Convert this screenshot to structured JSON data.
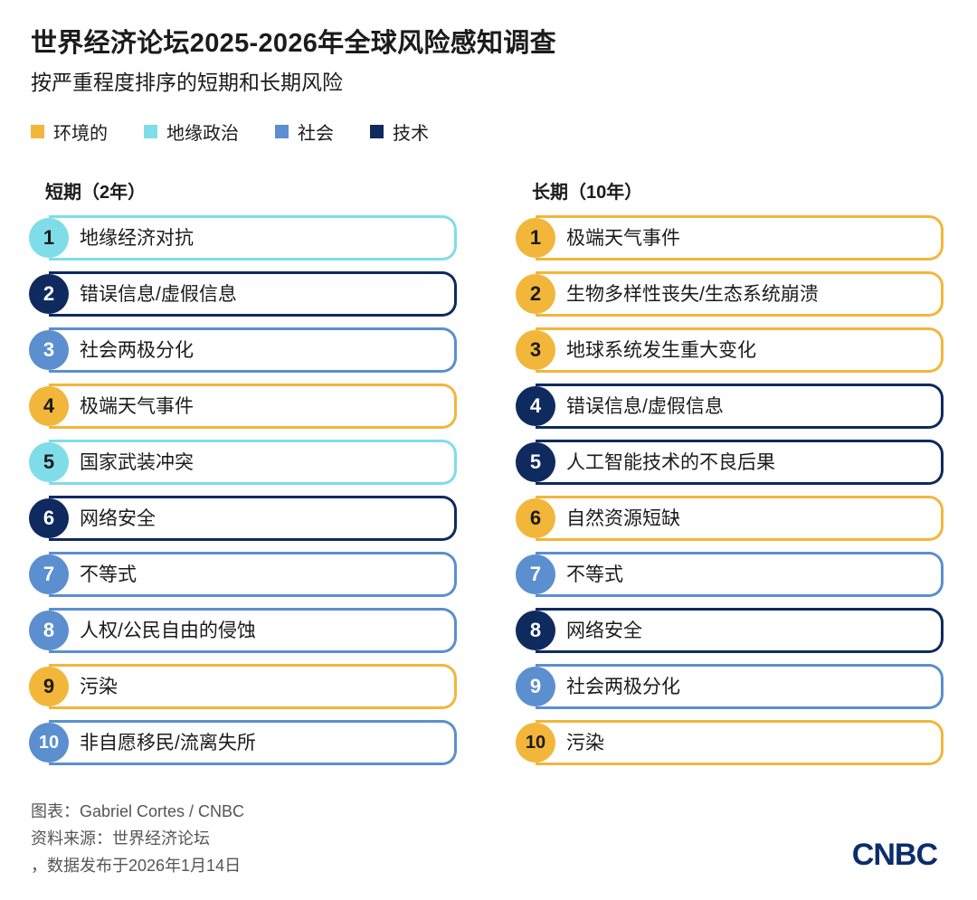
{
  "title": "世界经济论坛2025-2026年全球风险感知调查",
  "subtitle": "按严重程度排序的短期和长期风险",
  "legend": [
    {
      "key": "env",
      "label": "环境的",
      "color": "#f2b63a"
    },
    {
      "key": "geo",
      "label": "地缘政治",
      "color": "#7fdde9"
    },
    {
      "key": "soc",
      "label": "社会",
      "color": "#5b8fcf"
    },
    {
      "key": "tech",
      "label": "技术",
      "color": "#0f2a5e"
    }
  ],
  "short_term": {
    "title": "短期（2年）",
    "items": [
      {
        "rank": "1",
        "label": "地缘经济对抗",
        "category": "geo"
      },
      {
        "rank": "2",
        "label": "错误信息/虚假信息",
        "category": "tech"
      },
      {
        "rank": "3",
        "label": "社会两极分化",
        "category": "soc"
      },
      {
        "rank": "4",
        "label": "极端天气事件",
        "category": "env"
      },
      {
        "rank": "5",
        "label": "国家武装冲突",
        "category": "geo"
      },
      {
        "rank": "6",
        "label": "网络安全",
        "category": "tech"
      },
      {
        "rank": "7",
        "label": "不等式",
        "category": "soc"
      },
      {
        "rank": "8",
        "label": "人权/公民自由的侵蚀",
        "category": "soc"
      },
      {
        "rank": "9",
        "label": "污染",
        "category": "env"
      },
      {
        "rank": "10",
        "label": "非自愿移民/流离失所",
        "category": "soc"
      }
    ]
  },
  "long_term": {
    "title": "长期（10年）",
    "items": [
      {
        "rank": "1",
        "label": "极端天气事件",
        "category": "env"
      },
      {
        "rank": "2",
        "label": "生物多样性丧失/生态系统崩溃",
        "category": "env"
      },
      {
        "rank": "3",
        "label": "地球系统发生重大变化",
        "category": "env"
      },
      {
        "rank": "4",
        "label": "错误信息/虚假信息",
        "category": "tech"
      },
      {
        "rank": "5",
        "label": "人工智能技术的不良后果",
        "category": "tech"
      },
      {
        "rank": "6",
        "label": "自然资源短缺",
        "category": "env"
      },
      {
        "rank": "7",
        "label": "不等式",
        "category": "soc"
      },
      {
        "rank": "8",
        "label": "网络安全",
        "category": "tech"
      },
      {
        "rank": "9",
        "label": "社会两极分化",
        "category": "soc"
      },
      {
        "rank": "10",
        "label": "污染",
        "category": "env"
      }
    ]
  },
  "footer": {
    "credit": "图表：Gabriel Cortes / CNBC",
    "source": "资料来源：世界经济论坛",
    "date": "，数据发布于2026年1月14日"
  },
  "logo": "CNBC"
}
